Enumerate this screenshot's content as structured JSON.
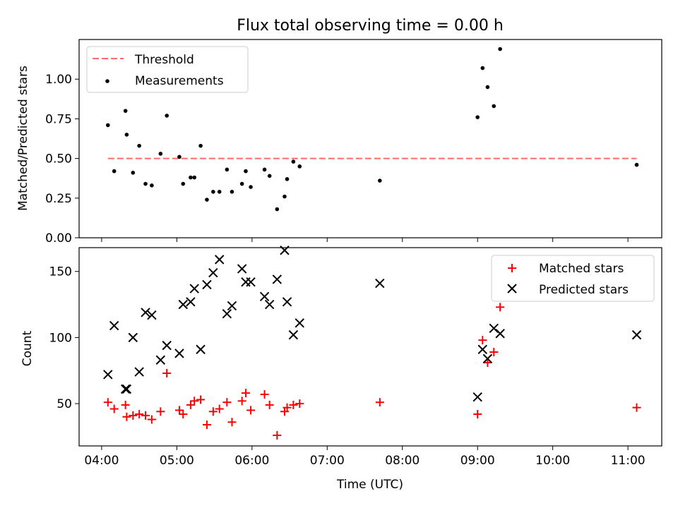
{
  "chart_data": {
    "title": "Flux total observing time = 0.00 h",
    "xlabel": "Time (UTC)",
    "x_tick_labels": [
      "04:00",
      "05:00",
      "06:00",
      "07:00",
      "08:00",
      "09:00",
      "10:00",
      "11:00"
    ],
    "x_ticks_hours": [
      4,
      5,
      6,
      7,
      8,
      9,
      10,
      11
    ],
    "xlim_hours": [
      3.7,
      11.45
    ],
    "panels": [
      {
        "type": "scatter",
        "ylabel": "Matched/Predicted stars",
        "ylim": [
          0,
          1.25
        ],
        "y_ticks": [
          "0.00",
          "0.25",
          "0.50",
          "0.75",
          "1.00"
        ],
        "legend_position": "top-left",
        "threshold": {
          "name": "Threshold",
          "value": 0.5,
          "x_from": "04:05",
          "x_to": "11:07",
          "color": "#ff6b6b"
        },
        "series": [
          {
            "name": "Measurements",
            "color": "#000000",
            "x": [
              "04:05",
              "04:10",
              "04:19",
              "04:20",
              "04:25",
              "04:30",
              "04:35",
              "04:40",
              "04:47",
              "04:52",
              "05:02",
              "05:05",
              "05:11",
              "05:14",
              "05:19",
              "05:24",
              "05:29",
              "05:34",
              "05:40",
              "05:44",
              "05:52",
              "05:55",
              "05:59",
              "06:10",
              "06:14",
              "06:20",
              "06:26",
              "06:28",
              "06:33",
              "06:38",
              "07:42",
              "09:00",
              "09:04",
              "09:08",
              "09:13",
              "09:18",
              "11:07"
            ],
            "y": [
              0.71,
              0.42,
              0.8,
              0.65,
              0.41,
              0.58,
              0.34,
              0.33,
              0.53,
              0.77,
              0.51,
              0.34,
              0.38,
              0.38,
              0.58,
              0.24,
              0.29,
              0.29,
              0.43,
              0.29,
              0.34,
              0.42,
              0.32,
              0.43,
              0.39,
              0.18,
              0.26,
              0.37,
              0.48,
              0.45,
              0.36,
              0.76,
              1.07,
              0.95,
              0.83,
              1.19,
              0.46
            ]
          }
        ]
      },
      {
        "type": "scatter",
        "ylabel": "Count",
        "ylim": [
          18,
          168
        ],
        "y_ticks": [
          50,
          100,
          150
        ],
        "legend_position": "top-right",
        "series": [
          {
            "name": "Matched stars",
            "marker": "+",
            "color": "#ff0000",
            "x": [
              "04:05",
              "04:10",
              "04:19",
              "04:20",
              "04:25",
              "04:30",
              "04:35",
              "04:40",
              "04:47",
              "04:52",
              "05:02",
              "05:05",
              "05:11",
              "05:14",
              "05:19",
              "05:24",
              "05:29",
              "05:34",
              "05:40",
              "05:44",
              "05:52",
              "05:55",
              "05:59",
              "06:10",
              "06:14",
              "06:20",
              "06:26",
              "06:28",
              "06:33",
              "06:38",
              "07:42",
              "09:00",
              "09:04",
              "09:08",
              "09:13",
              "09:18",
              "11:07"
            ],
            "y": [
              51,
              46,
              49,
              40,
              41,
              42,
              41,
              38,
              44,
              73,
              45,
              42,
              49,
              52,
              53,
              34,
              44,
              46,
              51,
              36,
              52,
              58,
              45,
              57,
              49,
              26,
              44,
              47,
              49,
              50,
              51,
              42,
              98,
              81,
              89,
              123,
              47
            ]
          },
          {
            "name": "Predicted stars",
            "marker": "x",
            "color": "#000000",
            "x": [
              "04:05",
              "04:10",
              "04:19",
              "04:20",
              "04:25",
              "04:30",
              "04:35",
              "04:40",
              "04:47",
              "04:52",
              "05:02",
              "05:05",
              "05:11",
              "05:14",
              "05:19",
              "05:24",
              "05:29",
              "05:34",
              "05:40",
              "05:44",
              "05:52",
              "05:55",
              "05:59",
              "06:10",
              "06:14",
              "06:20",
              "06:26",
              "06:28",
              "06:33",
              "06:38",
              "07:42",
              "09:00",
              "09:04",
              "09:08",
              "09:13",
              "09:18",
              "11:07"
            ],
            "y": [
              72,
              109,
              61,
              61,
              100,
              74,
              119,
              117,
              83,
              94,
              88,
              125,
              127,
              137,
              91,
              140,
              149,
              159,
              118,
              124,
              152,
              142,
              142,
              131,
              125,
              144,
              166,
              127,
              102,
              111,
              141,
              55,
              91,
              84,
              107,
              103,
              102
            ]
          }
        ]
      }
    ]
  }
}
